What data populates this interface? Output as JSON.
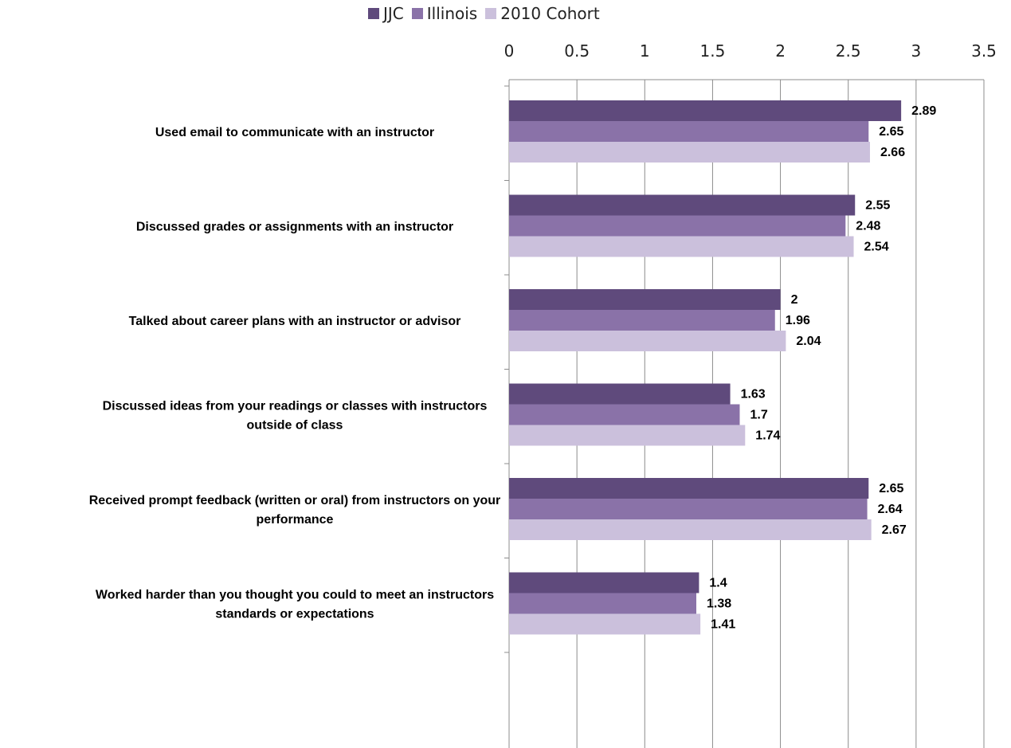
{
  "chart_data": {
    "type": "bar",
    "orientation": "horizontal",
    "title": "",
    "xlabel": "",
    "ylabel": "",
    "xlim": [
      0,
      3.5
    ],
    "ticks": [
      "0",
      "0.5",
      "1",
      "1.5",
      "2",
      "2.5",
      "3",
      "3.5"
    ],
    "grid": true,
    "legend_position": "top",
    "categories": [
      [
        "Used email to communicate with an instructor"
      ],
      [
        "Discussed grades or assignments with an instructor"
      ],
      [
        "Talked about career plans with an instructor or advisor"
      ],
      [
        "Discussed ideas from your readings or classes with instructors",
        "outside of class"
      ],
      [
        "Received prompt feedback (written or oral) from instructors on your",
        "performance"
      ],
      [
        "Worked harder than you thought you could to meet an instructors",
        "standards or expectations"
      ]
    ],
    "series": [
      {
        "name": "JJC",
        "color": "#5f4a7c",
        "values": [
          2.89,
          2.55,
          2,
          1.63,
          2.65,
          1.4
        ],
        "labels": [
          "2.89",
          "2.55",
          "2",
          "1.63",
          "2.65",
          "1.4"
        ]
      },
      {
        "name": "Illinois",
        "color": "#8a72a8",
        "values": [
          2.65,
          2.48,
          1.96,
          1.7,
          2.64,
          1.38
        ],
        "labels": [
          "2.65",
          "2.48",
          "1.96",
          "1.7",
          "2.64",
          "1.38"
        ]
      },
      {
        "name": "2010 Cohort",
        "color": "#cbc0dc",
        "values": [
          2.66,
          2.54,
          2.04,
          1.74,
          2.67,
          1.41
        ],
        "labels": [
          "2.66",
          "2.54",
          "2.04",
          "1.74",
          "2.67",
          "1.41"
        ]
      }
    ]
  }
}
